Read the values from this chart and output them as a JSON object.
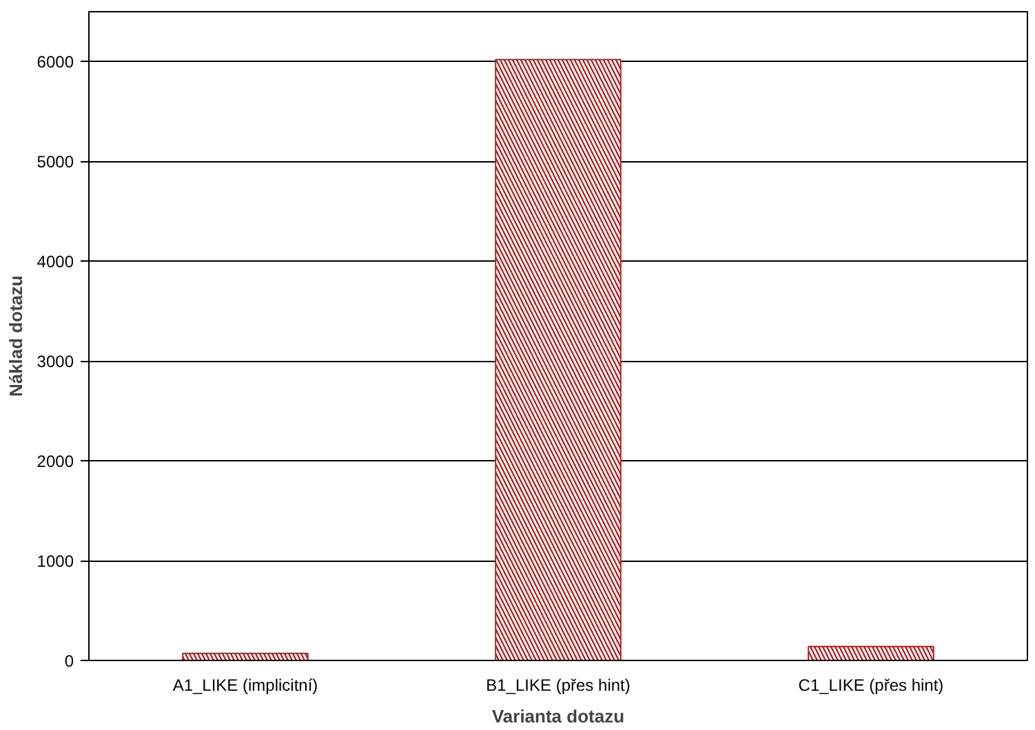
{
  "chart_data": {
    "type": "bar",
    "xlabel": "Varianta dotazu",
    "ylabel": "Náklad dotazu",
    "categories": [
      "A1_LIKE (implicitní)",
      "B1_LIKE (přes hint)",
      "C1_LIKE (přes hint)"
    ],
    "values": [
      70,
      6020,
      140
    ],
    "color": "#b22222",
    "ylim": [
      0,
      6500
    ],
    "yticks": [
      0,
      1000,
      2000,
      3000,
      4000,
      5000,
      6000
    ],
    "grid": "y"
  }
}
